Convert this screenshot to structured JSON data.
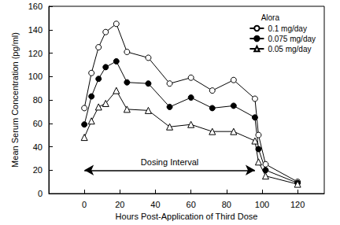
{
  "chart_data": {
    "type": "line",
    "x_label": "Hours Post-Application of Third Dose",
    "y_label": "Mean Serum Concentration (pg/ml)",
    "legend_title": "Alora",
    "x": [
      0,
      4,
      8,
      12,
      18,
      24,
      36,
      48,
      60,
      72,
      84,
      96,
      98,
      102,
      120
    ],
    "series": [
      {
        "name": "0.1 mg/day",
        "color": "#000000",
        "marker": "open_circle",
        "line_style": "solid",
        "values": [
          73,
          103,
          125,
          138,
          145,
          121,
          116,
          94,
          99,
          88,
          97,
          81,
          50,
          25,
          10
        ]
      },
      {
        "name": "0.075 mg/day",
        "color": "#000000",
        "marker": "filled_circle",
        "line_style": "solid",
        "values": [
          59,
          83,
          98,
          108,
          113,
          95,
          94,
          74,
          82,
          73,
          75,
          65,
          38,
          20,
          9
        ]
      },
      {
        "name": "0.05 mg/day",
        "color": "#000000",
        "marker": "open_triangle",
        "line_style": "solid",
        "values": [
          48,
          62,
          74,
          77,
          88,
          72,
          71,
          57,
          59,
          53,
          53,
          45,
          27,
          15,
          8
        ]
      }
    ],
    "annotations": [
      {
        "text": "Dosing Interval",
        "x_start": 0,
        "x_end": 96,
        "y": 20
      }
    ],
    "xlim": [
      -20,
      135
    ],
    "xticks": [
      0,
      20,
      40,
      60,
      80,
      100,
      120
    ],
    "ylim": [
      0,
      160
    ],
    "yticks": [
      0,
      20,
      40,
      60,
      80,
      100,
      120,
      140,
      160
    ],
    "legend": "upper right",
    "grid": false
  }
}
